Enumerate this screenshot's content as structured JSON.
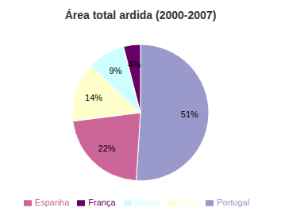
{
  "chart_data": {
    "type": "pie",
    "title": "Área total ardida (2000-2007)",
    "categories": [
      "Portugal",
      "Espanha",
      "Itália",
      "Grécia",
      "França"
    ],
    "values": [
      51,
      22,
      14,
      9,
      4
    ],
    "value_labels": [
      "51%",
      "22%",
      "14%",
      "9%",
      "4%"
    ],
    "colors": [
      "#9999cc",
      "#cc6699",
      "#ffffcc",
      "#ccffff",
      "#660066"
    ],
    "data_labels": true,
    "legend": "bottom"
  }
}
